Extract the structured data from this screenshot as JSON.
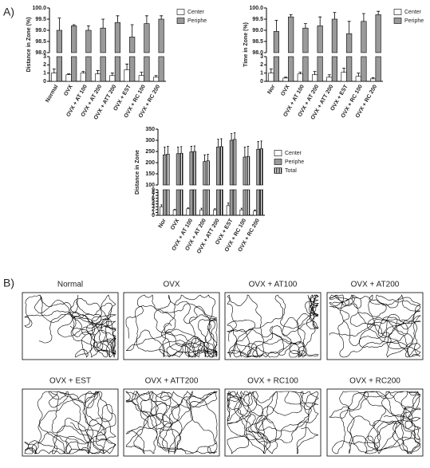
{
  "panel_a": {
    "label": "A)"
  },
  "chart_data": [
    {
      "type": "bar",
      "ylabel": "Distance in Zone (%)",
      "categories": [
        "Normal",
        "OVX",
        "OVX + AT 100",
        "OVX + AT 200",
        "OVX + ATT 200",
        "OVX + EST",
        "OVX + RC 100",
        "OVX + RC 200"
      ],
      "ylim": [
        0,
        3
      ],
      "yticks": [
        0,
        1,
        2,
        3
      ],
      "ylim_upper": [
        98,
        100
      ],
      "yticks_upper": [
        {
          "value": 98,
          "label": "98.0"
        },
        {
          "value": 98.5,
          "label": "98.5"
        },
        {
          "value": 99,
          "label": "99.0"
        },
        {
          "value": 99.5,
          "label": "99.5"
        },
        {
          "value": 100,
          "label": "100.0"
        }
      ],
      "series": [
        {
          "name": "Center",
          "color": "#ffffff",
          "panel": "lower",
          "values": [
            1.0,
            0.8,
            1.0,
            0.9,
            0.7,
            1.4,
            0.7,
            0.5
          ],
          "errors": [
            0.5,
            0.1,
            0.2,
            0.4,
            0.3,
            0.7,
            0.4,
            0.2
          ]
        },
        {
          "name": "Periphe",
          "color": "#9a9a9a",
          "panel": "upper",
          "values": [
            99.0,
            99.2,
            99.0,
            99.1,
            99.35,
            98.7,
            99.3,
            99.5
          ],
          "errors": [
            0.55,
            0.05,
            0.2,
            0.4,
            0.3,
            0.55,
            0.35,
            0.15
          ]
        }
      ]
    },
    {
      "type": "bar",
      "ylabel": "Time in Zone (%)",
      "categories": [
        "Nor",
        "OVX",
        "OVX + AT 100",
        "OVX + AT 200",
        "OVX + ATT 200",
        "OVX + EST",
        "OVX + RC 100",
        "OVX + RC 200"
      ],
      "ylim": [
        0,
        3
      ],
      "yticks": [
        0,
        1,
        2,
        3
      ],
      "ylim_upper": [
        98,
        100
      ],
      "yticks_upper": [
        {
          "value": 98,
          "label": "98.0"
        },
        {
          "value": 98.5,
          "label": "98.5"
        },
        {
          "value": 99,
          "label": "99.0"
        },
        {
          "value": 99.5,
          "label": "99.5"
        },
        {
          "value": 100,
          "label": "100.0"
        }
      ],
      "series": [
        {
          "name": "Center",
          "color": "#ffffff",
          "panel": "lower",
          "values": [
            1.0,
            0.4,
            0.9,
            0.8,
            0.5,
            1.1,
            0.6,
            0.3
          ],
          "errors": [
            0.5,
            0.1,
            0.2,
            0.4,
            0.3,
            0.5,
            0.4,
            0.15
          ]
        },
        {
          "name": "Periphe",
          "color": "#9a9a9a",
          "panel": "upper",
          "values": [
            98.95,
            99.6,
            99.1,
            99.2,
            99.5,
            98.85,
            99.4,
            99.7
          ],
          "errors": [
            0.5,
            0.1,
            0.2,
            0.4,
            0.3,
            0.55,
            0.35,
            0.15
          ]
        }
      ]
    },
    {
      "type": "bar",
      "ylabel": "Distance in Zone",
      "categories": [
        "Nor",
        "OVX",
        "OVX + AT 100",
        "OVX + AT 200",
        "OVX + ATT 200",
        "OVX + EST",
        "OVX + RC 100",
        "OVX + RC 200"
      ],
      "ylim": [
        0,
        9
      ],
      "yticks": [
        0,
        1,
        2,
        3,
        4,
        5,
        6,
        7,
        8,
        9
      ],
      "ylim_upper": [
        100,
        350
      ],
      "yticks_upper": [
        100,
        150,
        200,
        250,
        300,
        350
      ],
      "series": [
        {
          "name": "Center",
          "color": "#ffffff",
          "panel": "lower",
          "values": [
            3.0,
            1.9,
            2.3,
            1.9,
            1.9,
            3.4,
            1.9,
            1.5
          ],
          "errors": [
            0.7,
            0.2,
            0.3,
            0.6,
            0.4,
            0.9,
            0.6,
            0.4
          ]
        },
        {
          "name": "Periphe",
          "color": "#9a9a9a",
          "panel": "upper",
          "values": [
            235,
            240,
            248,
            205,
            270,
            300,
            225,
            260
          ],
          "errors": [
            35,
            30,
            25,
            30,
            35,
            30,
            45,
            35
          ]
        },
        {
          "name": "Total",
          "color": "#444444",
          "hatch": true,
          "panel": "upper",
          "values": [
            238,
            242,
            250,
            208,
            272,
            304,
            228,
            262
          ],
          "errors": [
            35,
            30,
            25,
            30,
            35,
            30,
            45,
            35
          ]
        }
      ]
    }
  ],
  "panel_b": {
    "label": "B)",
    "titles": [
      "Normal",
      "OVX",
      "OVX + AT100",
      "OVX + AT200",
      "OVX + EST",
      "OVX + ATT200",
      "OVX + RC100",
      "OVX + RC200"
    ]
  }
}
